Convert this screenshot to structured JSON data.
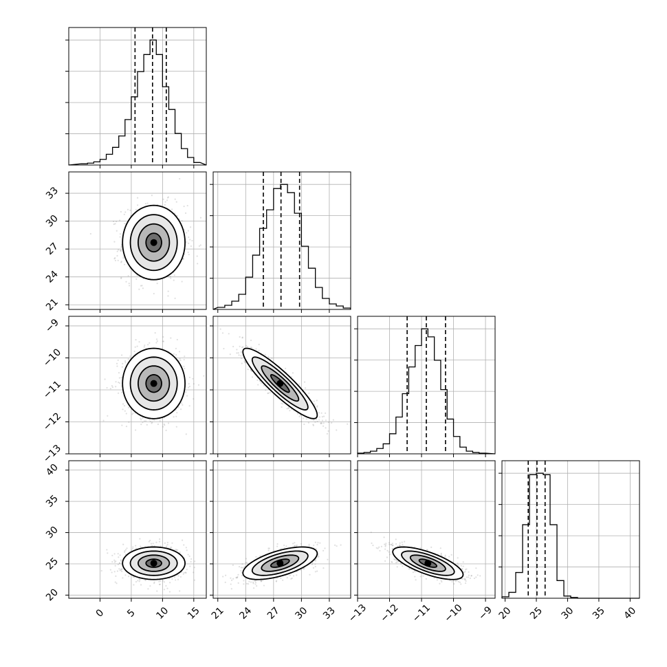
{
  "chart_data": {
    "type": "corner",
    "title": "",
    "grid": true,
    "colors": {
      "line": "#000000",
      "points": "#808080",
      "grid": "#b0b0b0",
      "background": "#ffffff"
    },
    "parameters": [
      {
        "index": 0,
        "label": "",
        "range": [
          -5,
          17
        ],
        "ticks": [
          0,
          5,
          10,
          15
        ],
        "tick_labels": [
          "0",
          "5",
          "10",
          "15"
        ],
        "quantiles": [
          5.6,
          8.4,
          10.6
        ]
      },
      {
        "index": 1,
        "label": "",
        "range": [
          20.5,
          35.3
        ],
        "ticks": [
          21,
          24,
          27,
          30,
          33
        ],
        "tick_labels": [
          "21",
          "24",
          "27",
          "30",
          "33"
        ],
        "quantiles": [
          25.9,
          27.8,
          29.8
        ]
      },
      {
        "index": 2,
        "label": "",
        "range": [
          -13.0,
          -8.7
        ],
        "ticks": [
          -13,
          -12,
          -11,
          -10,
          -9
        ],
        "tick_labels": [
          "−13",
          "−12",
          "−11",
          "−10",
          "−9"
        ],
        "quantiles": [
          -11.45,
          -10.85,
          -10.25
        ]
      },
      {
        "index": 3,
        "label": "",
        "range": [
          19.5,
          41.5
        ],
        "ticks": [
          20,
          25,
          30,
          35,
          40
        ],
        "tick_labels": [
          "20",
          "25",
          "30",
          "35",
          "40"
        ],
        "quantiles": [
          23.7,
          25.1,
          26.4
        ]
      }
    ],
    "marginals": [
      {
        "param": 0,
        "bin_edges": [
          -3,
          -2,
          -1,
          0,
          1,
          2,
          3,
          4,
          5,
          6,
          7,
          8,
          9,
          10,
          11,
          12,
          13,
          14,
          15,
          16
        ],
        "counts": [
          2,
          3,
          5,
          9,
          17,
          28,
          46,
          72,
          108,
          148,
          175,
          198,
          175,
          124,
          88,
          50,
          26,
          12,
          4
        ]
      },
      {
        "param": 1,
        "bin_edges": [
          21,
          21.75,
          22.5,
          23.25,
          24,
          24.75,
          25.5,
          26.25,
          27,
          27.75,
          28.5,
          29.25,
          30,
          30.75,
          31.5,
          32.25,
          33,
          33.75,
          34.5,
          35.25
        ],
        "counts": [
          3,
          6,
          12,
          22,
          47,
          79,
          118,
          145,
          176,
          182,
          170,
          140,
          92,
          60,
          32,
          16,
          8,
          5,
          2
        ]
      },
      {
        "param": 2,
        "bin_edges": [
          -13.0,
          -12.8,
          -12.6,
          -12.4,
          -12.2,
          -12.0,
          -11.8,
          -11.6,
          -11.4,
          -11.2,
          -11.0,
          -10.8,
          -10.6,
          -10.4,
          -10.2,
          -10.0,
          -9.8,
          -9.6,
          -9.4,
          -9.2,
          -9.0
        ],
        "counts": [
          1,
          2,
          4,
          8,
          15,
          30,
          55,
          90,
          130,
          162,
          187,
          175,
          140,
          96,
          52,
          26,
          10,
          4,
          2,
          1
        ]
      },
      {
        "param": 3,
        "bin_edges": [
          19.5,
          20.6,
          21.7,
          22.8,
          23.9,
          25.0,
          26.1,
          27.2,
          28.3,
          29.4,
          30.5,
          31.6,
          32.7,
          33.8,
          34.9,
          36.0,
          37.1,
          38.2,
          39.3,
          40.4,
          41.5
        ],
        "counts": [
          2,
          8,
          35,
          100,
          168,
          170,
          168,
          100,
          24,
          3,
          1,
          0,
          0,
          0,
          0,
          0,
          0,
          0,
          0,
          0
        ]
      }
    ],
    "joints": [
      {
        "x": 0,
        "y": 1,
        "mean": [
          8.6,
          27.7
        ],
        "sd": [
          2.5,
          2.0
        ],
        "corr": 0.0
      },
      {
        "x": 0,
        "y": 2,
        "mean": [
          8.6,
          -10.8
        ],
        "sd": [
          2.5,
          0.55
        ],
        "corr": 0.0
      },
      {
        "x": 1,
        "y": 2,
        "mean": [
          27.7,
          -10.8
        ],
        "sd": [
          2.0,
          0.55
        ],
        "corr": -0.9
      },
      {
        "x": 0,
        "y": 3,
        "mean": [
          8.6,
          25.1
        ],
        "sd": [
          2.5,
          1.3
        ],
        "corr": 0.0
      },
      {
        "x": 1,
        "y": 3,
        "mean": [
          27.7,
          25.1
        ],
        "sd": [
          2.0,
          1.3
        ],
        "corr": 0.6
      },
      {
        "x": 2,
        "y": 3,
        "mean": [
          -10.8,
          25.1
        ],
        "sd": [
          0.55,
          1.3
        ],
        "corr": -0.7
      }
    ],
    "contour_levels_sigma": [
      0.5,
      1.0,
      1.5,
      2.0
    ]
  }
}
